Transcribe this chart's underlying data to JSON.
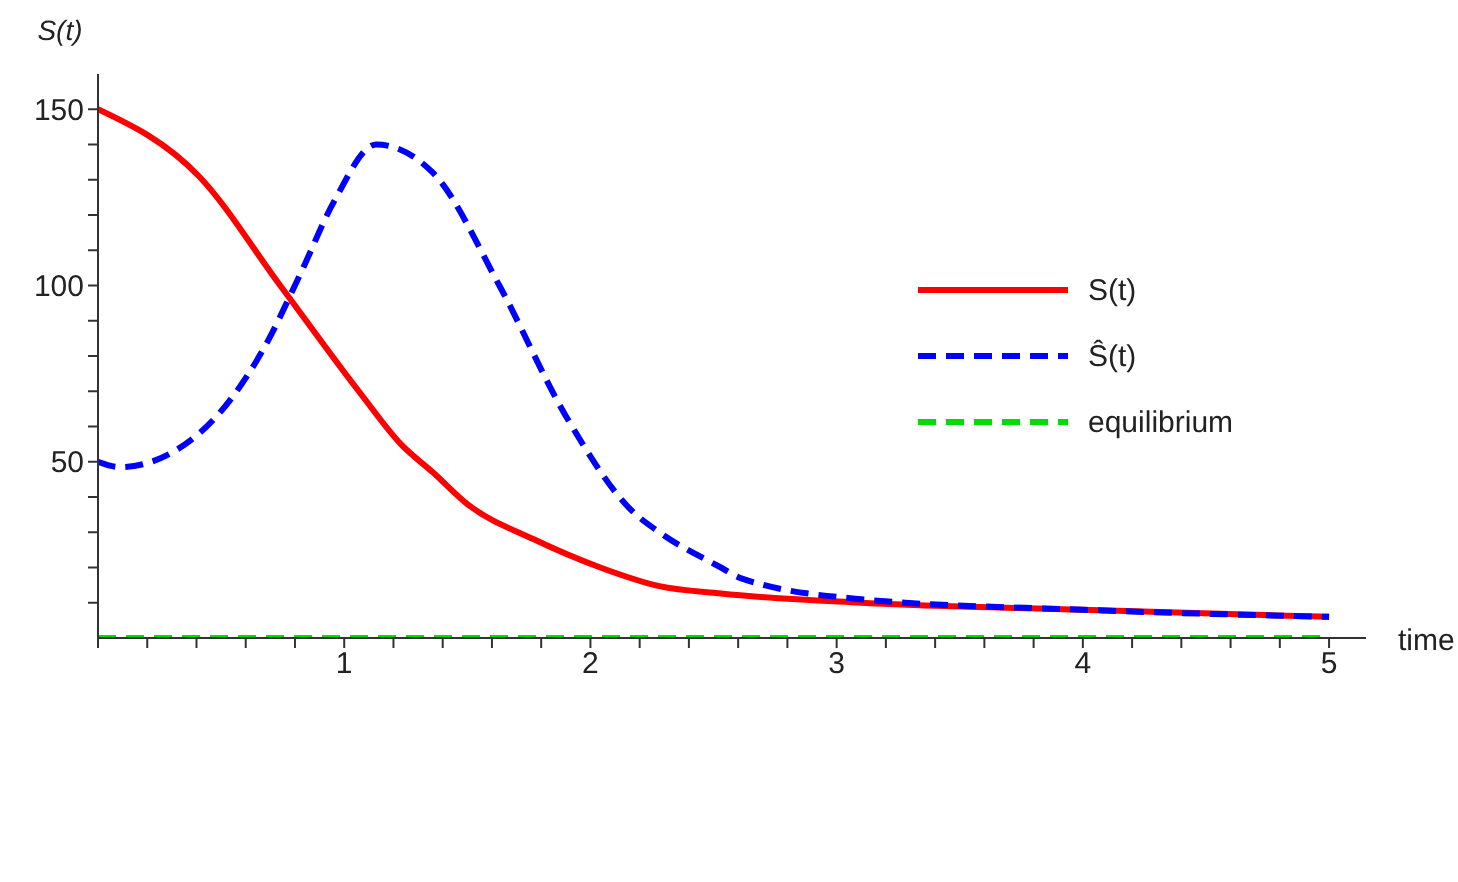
{
  "chart_data": {
    "type": "line",
    "xlabel": "time",
    "ylabel": "S(t)",
    "xlim": [
      0,
      5.15
    ],
    "ylim": [
      0,
      160
    ],
    "xticks": [
      {
        "value": 0,
        "label": null
      },
      {
        "value": 0.2,
        "label": null
      },
      {
        "value": 0.4,
        "label": null
      },
      {
        "value": 0.6,
        "label": null
      },
      {
        "value": 0.8,
        "label": null
      },
      1,
      {
        "value": 1.2,
        "label": null
      },
      {
        "value": 1.4,
        "label": null
      },
      {
        "value": 1.6,
        "label": null
      },
      {
        "value": 1.8,
        "label": null
      },
      2,
      {
        "value": 2.2,
        "label": null
      },
      {
        "value": 2.4,
        "label": null
      },
      {
        "value": 2.6,
        "label": null
      },
      {
        "value": 2.8,
        "label": null
      },
      3,
      {
        "value": 3.2,
        "label": null
      },
      {
        "value": 3.4,
        "label": null
      },
      {
        "value": 3.6,
        "label": null
      },
      {
        "value": 3.8,
        "label": null
      },
      4,
      {
        "value": 4.2,
        "label": null
      },
      {
        "value": 4.4,
        "label": null
      },
      {
        "value": 4.6,
        "label": null
      },
      {
        "value": 4.8,
        "label": null
      },
      5
    ],
    "yticks": [
      {
        "value": 10,
        "label": null
      },
      {
        "value": 20,
        "label": null
      },
      {
        "value": 30,
        "label": null
      },
      {
        "value": 40,
        "label": null
      },
      50,
      {
        "value": 60,
        "label": null
      },
      {
        "value": 70,
        "label": null
      },
      {
        "value": 80,
        "label": null
      },
      {
        "value": 90,
        "label": null
      },
      100,
      {
        "value": 110,
        "label": null
      },
      {
        "value": 120,
        "label": null
      },
      {
        "value": 130,
        "label": null
      },
      {
        "value": 140,
        "label": null
      },
      150
    ],
    "grid": false,
    "legend": "right",
    "marker": "none",
    "series": [
      {
        "name": "S(t)",
        "color": "#ff0000",
        "line_style": "solid",
        "x": [
          0,
          0.41,
          0.74,
          1.07,
          1.23,
          1.36,
          1.5,
          1.77,
          2.04,
          2.28,
          2.53,
          3.1,
          4,
          5
        ],
        "values": [
          150,
          131,
          100,
          69,
          55,
          47,
          38,
          28,
          20,
          14.7,
          12.6,
          10,
          8,
          6
        ]
      },
      {
        "name": "Ŝ(t)",
        "color": "#0000ff",
        "line_style": "dashed",
        "x": [
          0,
          0.09,
          0.41,
          0.68,
          0.82,
          0.96,
          1.13,
          1.36,
          1.63,
          1.9,
          2.17,
          2.28,
          2.53,
          2.61,
          3.1,
          4,
          5
        ],
        "values": [
          50,
          48.5,
          58,
          83,
          103,
          124,
          140,
          132,
          100,
          63,
          36,
          30,
          20,
          17,
          11,
          8,
          6
        ]
      },
      {
        "name": "equilibrium",
        "color": "#00dd00",
        "line_style": "dashed",
        "x": [
          0,
          5
        ],
        "values": [
          0,
          0
        ]
      }
    ]
  }
}
